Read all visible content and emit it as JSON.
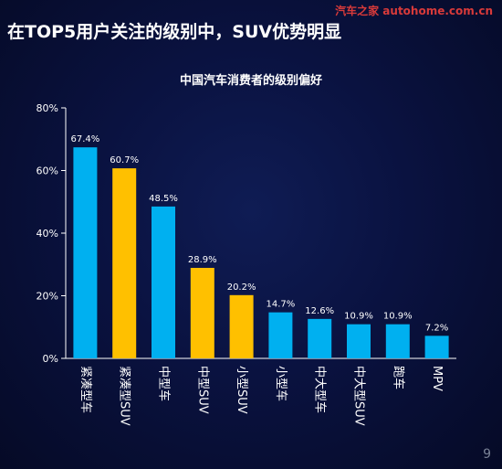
{
  "headline": "在TOP5用户关注的级别中，SUV优势明显",
  "watermark": "汽车之家 autohome.com.cn",
  "page_number": "9",
  "colors": {
    "highlight": "#ffc000",
    "default": "#00b0f0",
    "axis": "#ffffff",
    "text": "#ffffff"
  },
  "chart_data": {
    "type": "bar",
    "title": "中国汽车消费者的级别偏好",
    "xlabel": "",
    "ylabel": "",
    "categories": [
      "紧凑型车",
      "紧凑型SUV",
      "中型车",
      "中型SUV",
      "小型SUV",
      "小型车",
      "中大型车",
      "中大型SUV",
      "跑车",
      "MPV"
    ],
    "values": [
      67.4,
      60.7,
      48.5,
      28.9,
      20.2,
      14.7,
      12.6,
      10.9,
      10.9,
      7.2
    ],
    "value_labels": [
      "67.4%",
      "60.7%",
      "48.5%",
      "28.9%",
      "20.2%",
      "14.7%",
      "12.6%",
      "10.9%",
      "10.9%",
      "7.2%"
    ],
    "highlighted": [
      false,
      true,
      false,
      true,
      true,
      false,
      false,
      false,
      false,
      false
    ],
    "yticks": [
      0,
      20,
      40,
      60,
      80
    ],
    "ytick_labels": [
      "0%",
      "20%",
      "40%",
      "60%",
      "80%"
    ],
    "ylim": [
      0,
      80
    ],
    "grid": false,
    "legend": "none"
  }
}
